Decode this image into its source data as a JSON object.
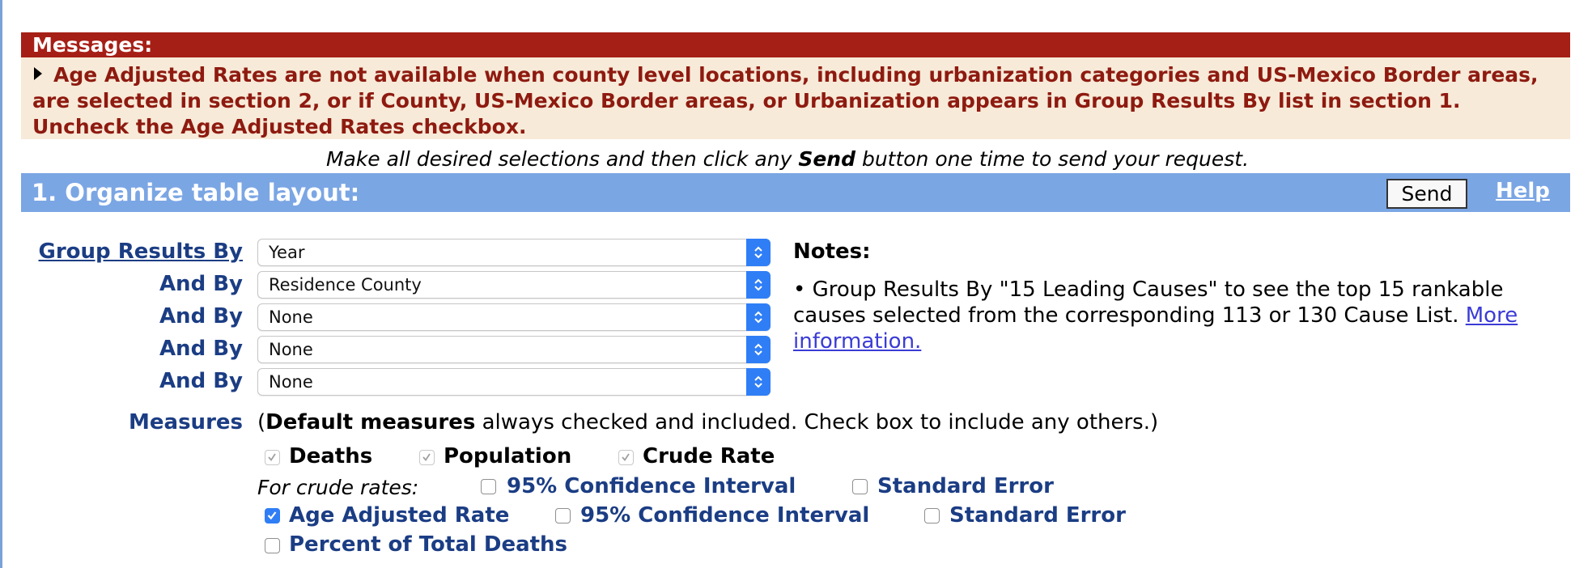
{
  "messages": {
    "header": "Messages:",
    "text": "Age Adjusted Rates are not available when county level locations, including urbanization categories and US-Mexico Border areas, are selected in section 2, or if County, US-Mexico Border areas, or Urbanization appears in Group Results By list in section 1. Uncheck the Age Adjusted Rates checkbox."
  },
  "instruction": {
    "before": "Make all desired selections and then click any ",
    "bold": "Send",
    "after": " button one time to send your request."
  },
  "section": {
    "title": "1. Organize table layout:",
    "send_label": "Send",
    "help_label": "Help"
  },
  "group_results": {
    "label": "Group Results By",
    "and_by_label": "And By",
    "selects": [
      "Year",
      "Residence County",
      "None",
      "None",
      "None"
    ]
  },
  "notes": {
    "title": "Notes:",
    "bullet": "•",
    "text": "Group Results By \"15 Leading Causes\" to see the top 15 rankable causes selected from the corresponding 113 or 130 Cause List. ",
    "link": "More information."
  },
  "measures": {
    "label": "Measures",
    "intro_open": "(",
    "intro_bold": "Default measures",
    "intro_rest": " always checked and included. Check box to include any others.)",
    "defaults": [
      {
        "label": "Deaths",
        "checked": true
      },
      {
        "label": "Population",
        "checked": true
      },
      {
        "label": "Crude Rate",
        "checked": true
      }
    ],
    "crude_rates_label": "For crude rates:",
    "crude_options": [
      {
        "label": "95% Confidence Interval",
        "checked": false
      },
      {
        "label": "Standard Error",
        "checked": false
      }
    ],
    "age_adjusted": {
      "label": "Age Adjusted Rate",
      "checked": true
    },
    "age_options": [
      {
        "label": "95% Confidence Interval",
        "checked": false
      },
      {
        "label": "Standard Error",
        "checked": false
      }
    ],
    "percent_total": {
      "label": "Percent of Total Deaths",
      "checked": false
    }
  },
  "colors": {
    "message_header_bg": "#a61f16",
    "message_body_bg": "#f7ead8",
    "section_bar_bg": "#7ba6e4",
    "label_blue": "#1b3d84",
    "checkbox_blue": "#2f7ef6"
  }
}
